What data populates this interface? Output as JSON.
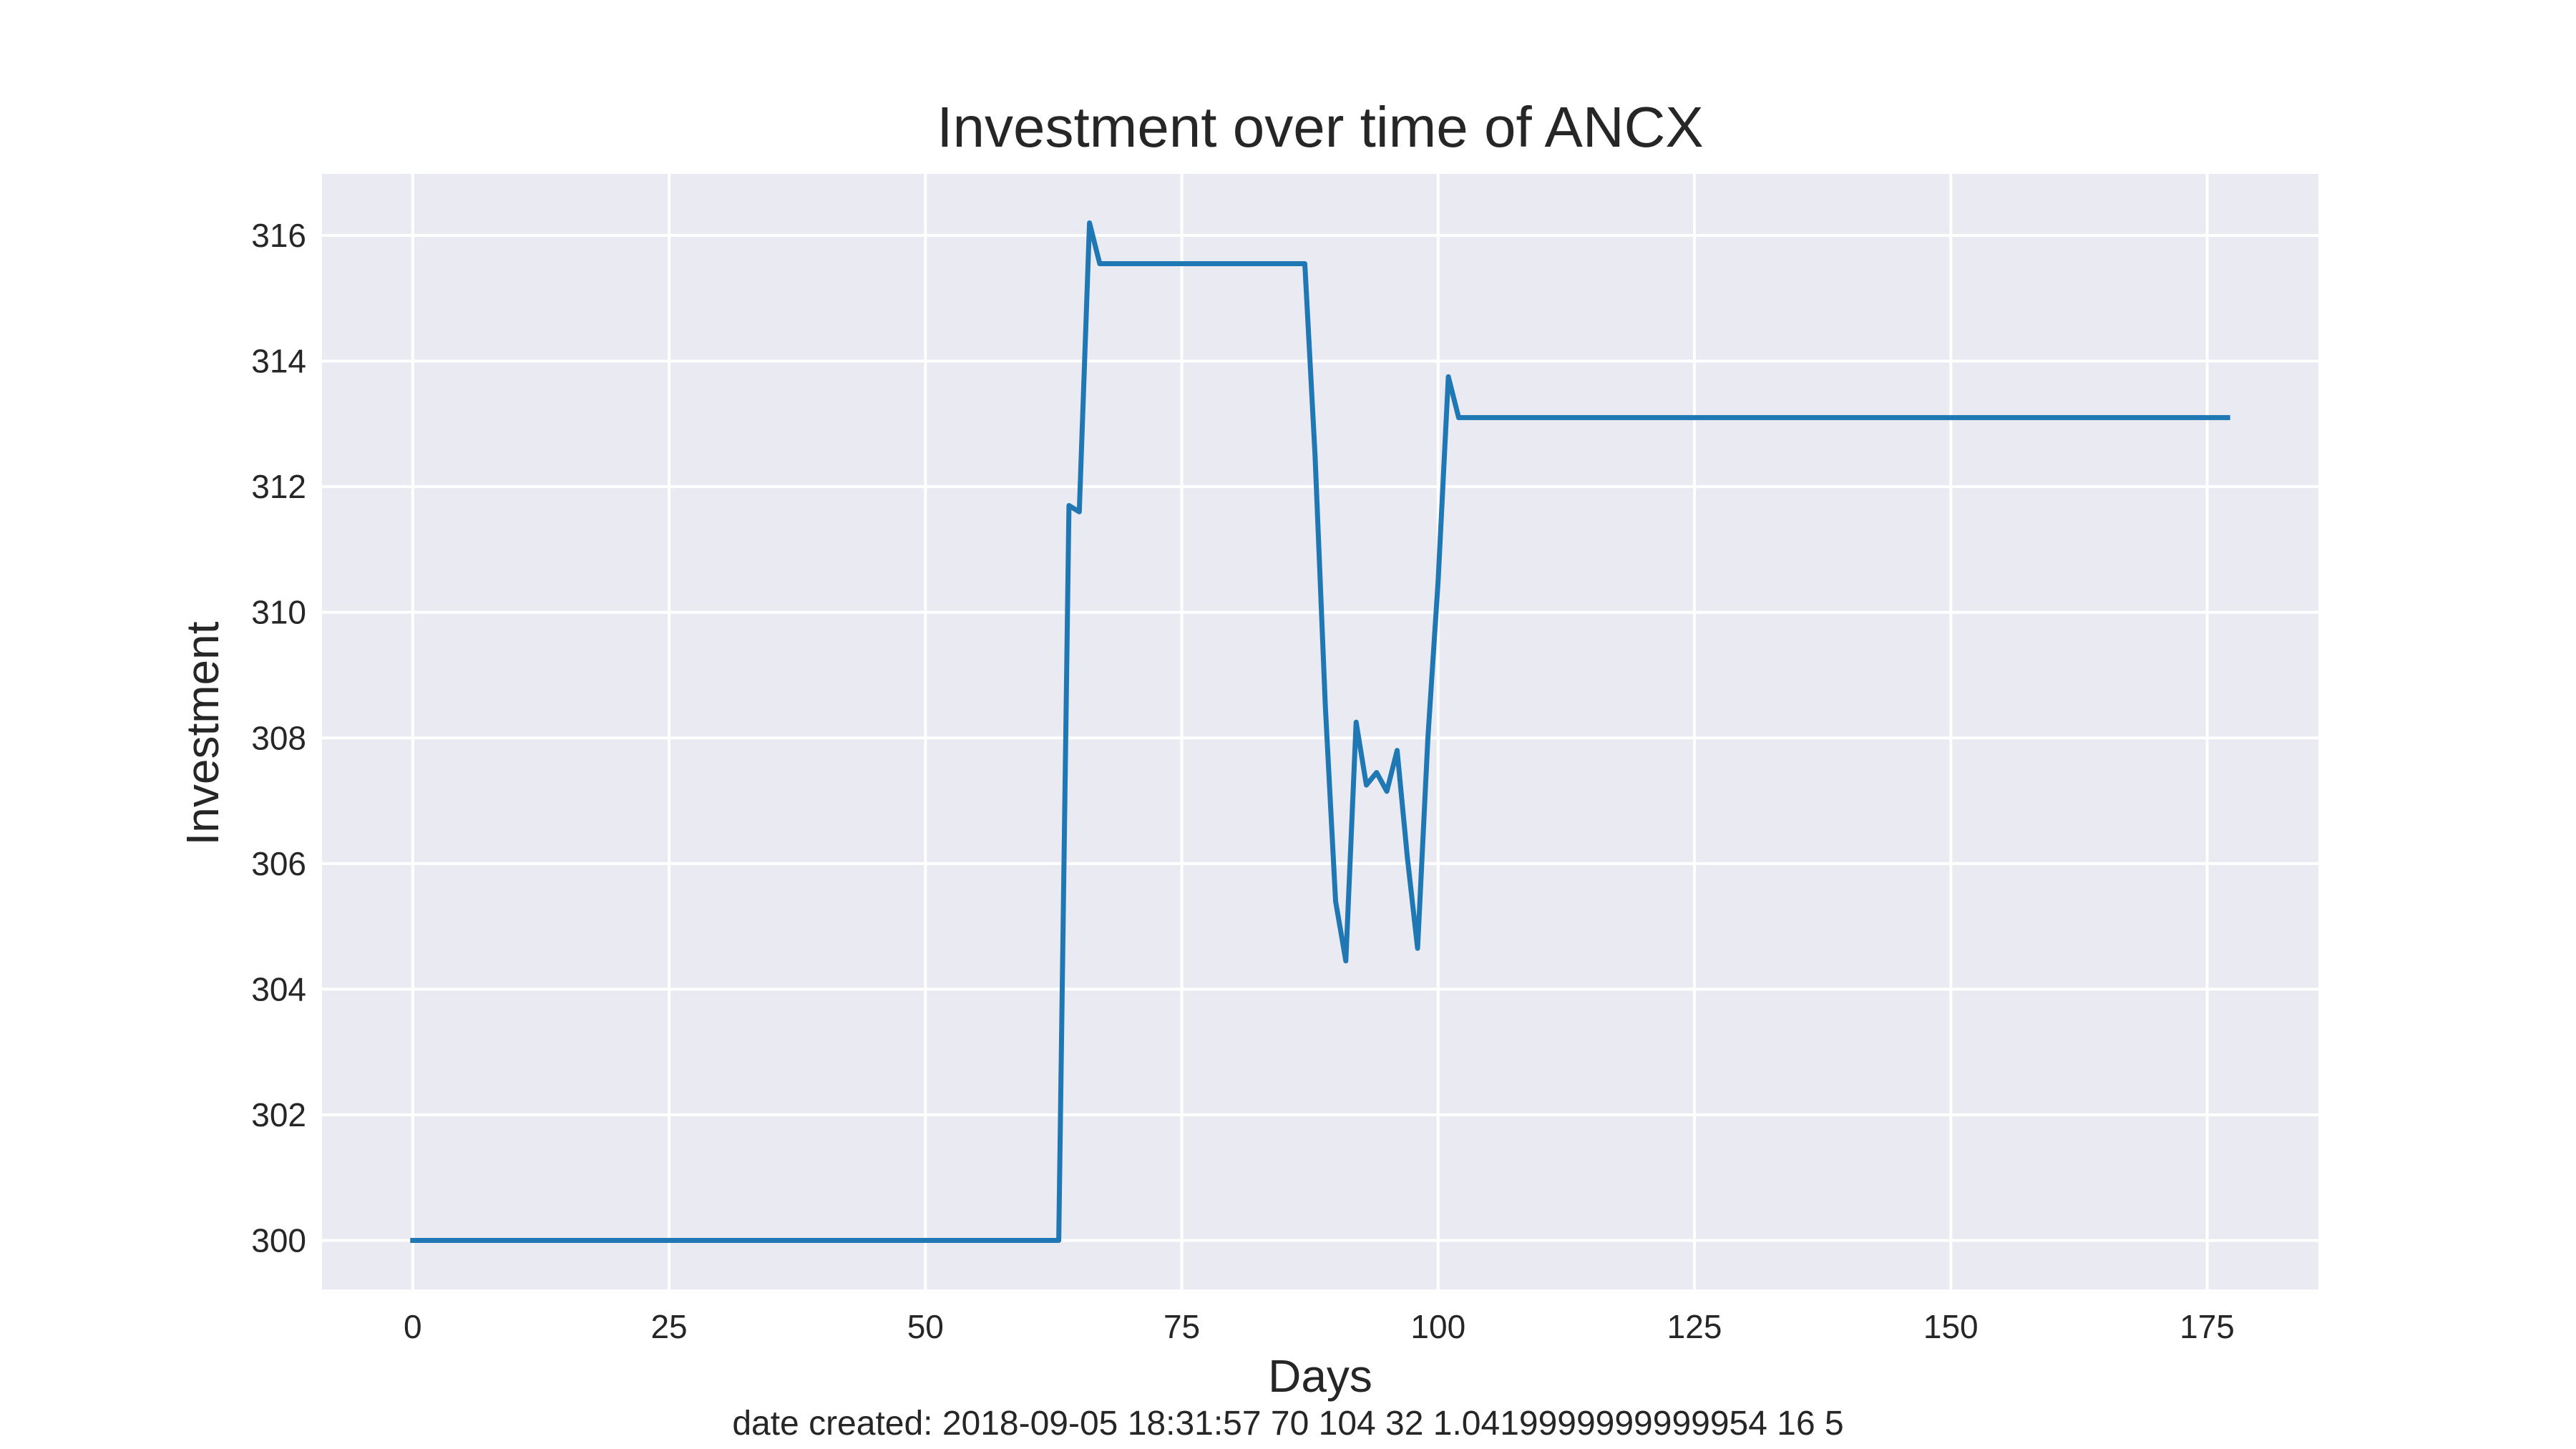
{
  "chart_data": {
    "type": "line",
    "title": "Investment over time of ANCX",
    "xlabel": "Days",
    "ylabel": "Investment",
    "xlim": [
      -8.85,
      185.85
    ],
    "ylim": [
      299.22,
      316.98
    ],
    "grid": true,
    "x_ticks": [
      0,
      25,
      50,
      75,
      100,
      125,
      150,
      175
    ],
    "y_ticks": [
      300,
      302,
      304,
      306,
      308,
      310,
      312,
      314,
      316
    ],
    "series": [
      {
        "color": "#1f77b4",
        "points": [
          [
            0,
            300.0
          ],
          [
            63,
            300.0
          ],
          [
            64,
            311.7
          ],
          [
            65,
            311.6
          ],
          [
            66,
            316.2
          ],
          [
            67,
            315.55
          ],
          [
            87,
            315.55
          ],
          [
            88,
            312.5
          ],
          [
            89,
            308.5
          ],
          [
            90,
            305.4
          ],
          [
            91,
            304.45
          ],
          [
            92,
            308.25
          ],
          [
            93,
            307.25
          ],
          [
            94,
            307.45
          ],
          [
            95,
            307.15
          ],
          [
            96,
            307.8
          ],
          [
            97,
            306.1
          ],
          [
            98,
            304.65
          ],
          [
            99,
            308.0
          ],
          [
            100,
            310.5
          ],
          [
            101,
            313.75
          ],
          [
            102,
            313.1
          ],
          [
            177,
            313.1
          ]
        ]
      }
    ]
  },
  "footer_text": "date created: 2018-09-05 18:31:57 70 104 32 1.0419999999999954 16 5"
}
